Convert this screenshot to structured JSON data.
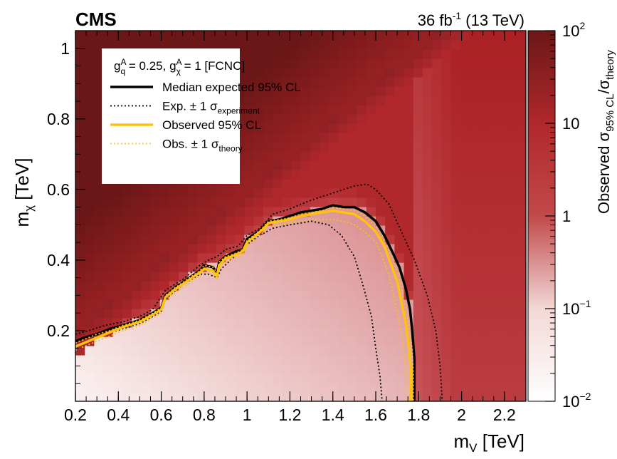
{
  "chart_data": {
    "type": "heatmap",
    "experiment_label": "CMS",
    "lumi_label": {
      "lumi": "36 fb",
      "lumi_exp": "-1",
      "energy": " (13 TeV)"
    },
    "xlabel": {
      "base": "m",
      "sub": "V",
      "unit": " [TeV]"
    },
    "ylabel": {
      "base": "m",
      "sub": "χ",
      "unit": " [TeV]"
    },
    "zlabel": {
      "prefix": "Observed σ",
      "sub1": "95% CL",
      "slash": "/σ",
      "sub2": "theory"
    },
    "xlim": [
      0.2,
      2.3
    ],
    "ylim": [
      0.0,
      1.05
    ],
    "zlim": [
      0.01,
      100
    ],
    "zscale": "log",
    "x_ticks": [
      0.2,
      0.4,
      0.6,
      0.8,
      1,
      1.2,
      1.4,
      1.6,
      1.8,
      2,
      2.2
    ],
    "x_tick_labels": [
      "0.2",
      "0.4",
      "0.6",
      "0.8",
      "1",
      "1.2",
      "1.4",
      "1.6",
      "1.8",
      "2",
      "2.2"
    ],
    "y_ticks": [
      0.2,
      0.4,
      0.6,
      0.8,
      1
    ],
    "y_tick_labels": [
      "0.2",
      "0.4",
      "0.6",
      "0.8",
      "1"
    ],
    "z_tick_labels": [
      {
        "value": 100,
        "base": "10",
        "exp": "2"
      },
      {
        "value": 10,
        "base": "10",
        "exp": ""
      },
      {
        "value": 1,
        "base": "1",
        "exp": ""
      },
      {
        "value": 0.1,
        "base": "10",
        "exp": "−1"
      },
      {
        "value": 0.01,
        "base": "10",
        "exp": "−2"
      }
    ],
    "legend": {
      "placement": "top-left",
      "header": "g_q^A = 0.25, g_χ^A = 1 [FCNC]",
      "entries": [
        {
          "label": "Median expected 95% CL",
          "sub": "",
          "style": "solid",
          "color": "#000000"
        },
        {
          "label": "Exp. ± 1 σ",
          "sub": "experiment",
          "style": "dotted",
          "color": "#000000"
        },
        {
          "label": "Observed 95% CL",
          "sub": "",
          "style": "solid",
          "color": "#ffc20e"
        },
        {
          "label": "Obs. ± 1 σ",
          "sub": "theory",
          "style": "dotted",
          "color": "#ffc20e"
        }
      ]
    },
    "colors": {
      "high": "#6b1717",
      "mid": "#b82a2e",
      "low": "#ffffff",
      "observed": "#ffc20e",
      "expected": "#000000"
    },
    "series": [
      {
        "name": "Median expected 95% CL",
        "points": [
          [
            0.2,
            0.17
          ],
          [
            0.24,
            0.18
          ],
          [
            0.3,
            0.19
          ],
          [
            0.36,
            0.205
          ],
          [
            0.42,
            0.215
          ],
          [
            0.5,
            0.23
          ],
          [
            0.56,
            0.25
          ],
          [
            0.6,
            0.265
          ],
          [
            0.62,
            0.3
          ],
          [
            0.66,
            0.32
          ],
          [
            0.72,
            0.345
          ],
          [
            0.78,
            0.37
          ],
          [
            0.8,
            0.385
          ],
          [
            0.84,
            0.38
          ],
          [
            0.86,
            0.365
          ],
          [
            0.87,
            0.395
          ],
          [
            0.9,
            0.41
          ],
          [
            0.95,
            0.425
          ],
          [
            0.98,
            0.43
          ],
          [
            1.0,
            0.46
          ],
          [
            1.04,
            0.475
          ],
          [
            1.07,
            0.49
          ],
          [
            1.1,
            0.51
          ],
          [
            1.15,
            0.515
          ],
          [
            1.2,
            0.525
          ],
          [
            1.25,
            0.535
          ],
          [
            1.3,
            0.54
          ],
          [
            1.35,
            0.545
          ],
          [
            1.4,
            0.555
          ],
          [
            1.45,
            0.55
          ],
          [
            1.5,
            0.55
          ],
          [
            1.55,
            0.535
          ],
          [
            1.6,
            0.51
          ],
          [
            1.64,
            0.47
          ],
          [
            1.68,
            0.42
          ],
          [
            1.71,
            0.38
          ],
          [
            1.74,
            0.32
          ],
          [
            1.76,
            0.26
          ],
          [
            1.77,
            0.2
          ],
          [
            1.78,
            0.12
          ],
          [
            1.78,
            0.0
          ]
        ]
      },
      {
        "name": "Observed 95% CL",
        "points": [
          [
            0.2,
            0.155
          ],
          [
            0.24,
            0.165
          ],
          [
            0.3,
            0.18
          ],
          [
            0.36,
            0.195
          ],
          [
            0.42,
            0.21
          ],
          [
            0.5,
            0.225
          ],
          [
            0.56,
            0.245
          ],
          [
            0.6,
            0.26
          ],
          [
            0.62,
            0.295
          ],
          [
            0.66,
            0.315
          ],
          [
            0.72,
            0.34
          ],
          [
            0.78,
            0.365
          ],
          [
            0.8,
            0.375
          ],
          [
            0.84,
            0.37
          ],
          [
            0.86,
            0.355
          ],
          [
            0.87,
            0.385
          ],
          [
            0.9,
            0.405
          ],
          [
            0.95,
            0.415
          ],
          [
            0.98,
            0.425
          ],
          [
            1.0,
            0.45
          ],
          [
            1.04,
            0.47
          ],
          [
            1.07,
            0.485
          ],
          [
            1.1,
            0.505
          ],
          [
            1.15,
            0.51
          ],
          [
            1.2,
            0.515
          ],
          [
            1.25,
            0.525
          ],
          [
            1.3,
            0.53
          ],
          [
            1.35,
            0.535
          ],
          [
            1.4,
            0.54
          ],
          [
            1.45,
            0.535
          ],
          [
            1.5,
            0.53
          ],
          [
            1.55,
            0.51
          ],
          [
            1.6,
            0.48
          ],
          [
            1.64,
            0.44
          ],
          [
            1.67,
            0.39
          ],
          [
            1.7,
            0.34
          ],
          [
            1.72,
            0.28
          ],
          [
            1.74,
            0.22
          ],
          [
            1.755,
            0.15
          ],
          [
            1.765,
            0.08
          ],
          [
            1.765,
            0.0
          ]
        ]
      },
      {
        "name": "Exp. ± 1 σ experiment (upper)",
        "points": [
          [
            0.2,
            0.19
          ],
          [
            0.26,
            0.2
          ],
          [
            0.34,
            0.215
          ],
          [
            0.42,
            0.225
          ],
          [
            0.5,
            0.24
          ],
          [
            0.56,
            0.26
          ],
          [
            0.62,
            0.315
          ],
          [
            0.7,
            0.345
          ],
          [
            0.78,
            0.385
          ],
          [
            0.82,
            0.4
          ],
          [
            0.86,
            0.41
          ],
          [
            0.9,
            0.43
          ],
          [
            0.96,
            0.44
          ],
          [
            1.0,
            0.47
          ],
          [
            1.06,
            0.49
          ],
          [
            1.12,
            0.53
          ],
          [
            1.2,
            0.545
          ],
          [
            1.3,
            0.57
          ],
          [
            1.4,
            0.59
          ],
          [
            1.5,
            0.61
          ],
          [
            1.56,
            0.615
          ],
          [
            1.6,
            0.6
          ],
          [
            1.66,
            0.56
          ],
          [
            1.72,
            0.48
          ],
          [
            1.78,
            0.4
          ],
          [
            1.84,
            0.3
          ],
          [
            1.88,
            0.2
          ],
          [
            1.9,
            0.1
          ],
          [
            1.91,
            0.0
          ]
        ]
      },
      {
        "name": "Exp. ± 1 σ experiment (lower)",
        "points": [
          [
            0.2,
            0.155
          ],
          [
            0.26,
            0.17
          ],
          [
            0.34,
            0.19
          ],
          [
            0.42,
            0.205
          ],
          [
            0.5,
            0.22
          ],
          [
            0.56,
            0.24
          ],
          [
            0.6,
            0.255
          ],
          [
            0.62,
            0.29
          ],
          [
            0.7,
            0.33
          ],
          [
            0.78,
            0.36
          ],
          [
            0.82,
            0.36
          ],
          [
            0.86,
            0.35
          ],
          [
            0.88,
            0.375
          ],
          [
            0.94,
            0.41
          ],
          [
            1.0,
            0.445
          ],
          [
            1.06,
            0.47
          ],
          [
            1.12,
            0.49
          ],
          [
            1.2,
            0.5
          ],
          [
            1.3,
            0.51
          ],
          [
            1.38,
            0.5
          ],
          [
            1.44,
            0.47
          ],
          [
            1.5,
            0.41
          ],
          [
            1.54,
            0.33
          ],
          [
            1.58,
            0.24
          ],
          [
            1.6,
            0.15
          ],
          [
            1.62,
            0.07
          ],
          [
            1.63,
            0.0
          ]
        ]
      },
      {
        "name": "Obs. ± 1 σ theory (upper)",
        "points": [
          [
            0.2,
            0.165
          ],
          [
            0.24,
            0.175
          ],
          [
            0.3,
            0.19
          ],
          [
            0.36,
            0.2
          ],
          [
            0.42,
            0.215
          ],
          [
            0.5,
            0.23
          ],
          [
            0.56,
            0.25
          ],
          [
            0.6,
            0.265
          ],
          [
            0.62,
            0.3
          ],
          [
            0.66,
            0.32
          ],
          [
            0.72,
            0.345
          ],
          [
            0.78,
            0.37
          ],
          [
            0.8,
            0.385
          ],
          [
            0.84,
            0.38
          ],
          [
            0.86,
            0.365
          ],
          [
            0.87,
            0.395
          ],
          [
            0.9,
            0.41
          ],
          [
            0.95,
            0.42
          ],
          [
            0.98,
            0.43
          ],
          [
            1.0,
            0.455
          ],
          [
            1.04,
            0.475
          ],
          [
            1.07,
            0.49
          ],
          [
            1.1,
            0.51
          ],
          [
            1.15,
            0.515
          ],
          [
            1.2,
            0.52
          ],
          [
            1.25,
            0.53
          ],
          [
            1.3,
            0.535
          ],
          [
            1.35,
            0.54
          ],
          [
            1.4,
            0.55
          ],
          [
            1.45,
            0.545
          ],
          [
            1.5,
            0.54
          ],
          [
            1.55,
            0.525
          ],
          [
            1.6,
            0.495
          ],
          [
            1.64,
            0.455
          ],
          [
            1.68,
            0.4
          ],
          [
            1.71,
            0.35
          ],
          [
            1.73,
            0.29
          ],
          [
            1.75,
            0.23
          ],
          [
            1.77,
            0.15
          ],
          [
            1.775,
            0.08
          ],
          [
            1.775,
            0.0
          ]
        ]
      },
      {
        "name": "Obs. ± 1 σ theory (lower)",
        "points": [
          [
            0.2,
            0.145
          ],
          [
            0.24,
            0.155
          ],
          [
            0.3,
            0.17
          ],
          [
            0.36,
            0.185
          ],
          [
            0.42,
            0.2
          ],
          [
            0.5,
            0.215
          ],
          [
            0.56,
            0.235
          ],
          [
            0.6,
            0.25
          ],
          [
            0.62,
            0.285
          ],
          [
            0.66,
            0.305
          ],
          [
            0.72,
            0.33
          ],
          [
            0.78,
            0.355
          ],
          [
            0.8,
            0.365
          ],
          [
            0.84,
            0.36
          ],
          [
            0.86,
            0.345
          ],
          [
            0.87,
            0.375
          ],
          [
            0.9,
            0.395
          ],
          [
            0.95,
            0.405
          ],
          [
            0.98,
            0.415
          ],
          [
            1.0,
            0.44
          ],
          [
            1.04,
            0.46
          ],
          [
            1.07,
            0.475
          ],
          [
            1.1,
            0.495
          ],
          [
            1.15,
            0.5
          ],
          [
            1.2,
            0.505
          ],
          [
            1.25,
            0.51
          ],
          [
            1.3,
            0.515
          ],
          [
            1.35,
            0.515
          ],
          [
            1.4,
            0.515
          ],
          [
            1.45,
            0.51
          ],
          [
            1.5,
            0.5
          ],
          [
            1.55,
            0.48
          ],
          [
            1.6,
            0.45
          ],
          [
            1.63,
            0.41
          ],
          [
            1.66,
            0.36
          ],
          [
            1.68,
            0.31
          ],
          [
            1.7,
            0.25
          ],
          [
            1.72,
            0.19
          ],
          [
            1.735,
            0.12
          ],
          [
            1.745,
            0.05
          ],
          [
            1.745,
            0.0
          ]
        ]
      }
    ]
  }
}
